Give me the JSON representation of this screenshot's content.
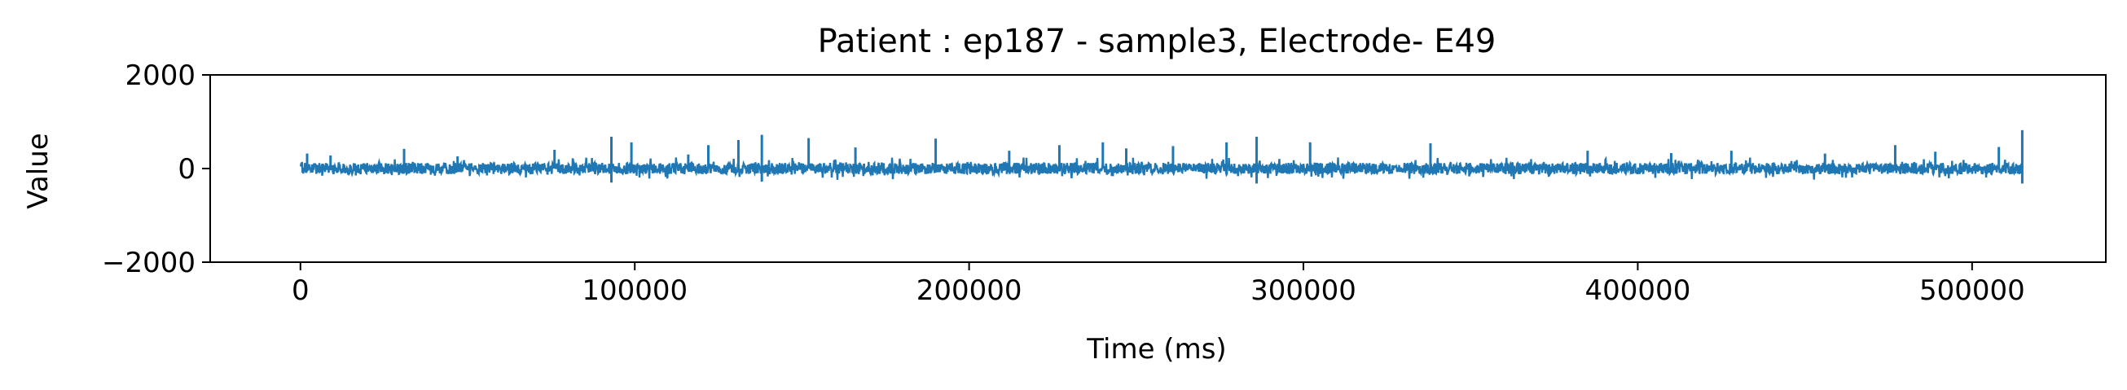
{
  "chart_data": {
    "type": "line",
    "title": "Patient : ep187 - sample3, Electrode- E49",
    "xlabel": "Time (ms)",
    "ylabel": "Value",
    "xlim": [
      -27000,
      540000
    ],
    "ylim": [
      -2000,
      2000
    ],
    "x_range": [
      0,
      515000
    ],
    "xticks": [
      0,
      100000,
      200000,
      300000,
      400000,
      500000
    ],
    "xtick_labels": [
      "0",
      "100000",
      "200000",
      "300000",
      "400000",
      "500000"
    ],
    "yticks": [
      -2000,
      0,
      2000
    ],
    "ytick_labels": [
      "−2000",
      "0",
      "2000"
    ],
    "grid": false,
    "legend": "none",
    "baseline_band": [
      -120,
      120
    ],
    "spikes": [
      {
        "x": 2000,
        "y": 320
      },
      {
        "x": 9000,
        "y": 280
      },
      {
        "x": 31000,
        "y": 420
      },
      {
        "x": 47000,
        "y": 260
      },
      {
        "x": 76000,
        "y": 400
      },
      {
        "x": 93000,
        "y": 680
      },
      {
        "x": 99000,
        "y": 560
      },
      {
        "x": 116000,
        "y": 300
      },
      {
        "x": 122000,
        "y": 500
      },
      {
        "x": 131000,
        "y": 610
      },
      {
        "x": 138000,
        "y": 720
      },
      {
        "x": 152000,
        "y": 650
      },
      {
        "x": 166000,
        "y": 450
      },
      {
        "x": 190000,
        "y": 640
      },
      {
        "x": 212000,
        "y": 380
      },
      {
        "x": 227000,
        "y": 500
      },
      {
        "x": 240000,
        "y": 560
      },
      {
        "x": 247000,
        "y": 430
      },
      {
        "x": 261000,
        "y": 480
      },
      {
        "x": 277000,
        "y": 560
      },
      {
        "x": 286000,
        "y": 680
      },
      {
        "x": 302000,
        "y": 560
      },
      {
        "x": 338000,
        "y": 540
      },
      {
        "x": 385000,
        "y": 380
      },
      {
        "x": 410000,
        "y": 330
      },
      {
        "x": 428000,
        "y": 380
      },
      {
        "x": 456000,
        "y": 320
      },
      {
        "x": 477000,
        "y": 500
      },
      {
        "x": 489000,
        "y": 360
      },
      {
        "x": 508000,
        "y": 460
      },
      {
        "x": 515000,
        "y": 820
      },
      {
        "x": 515000,
        "y": -320
      },
      {
        "x": 93000,
        "y": -300
      },
      {
        "x": 138000,
        "y": -280
      },
      {
        "x": 286000,
        "y": -320
      }
    ],
    "series_color": "#1f77b4"
  }
}
